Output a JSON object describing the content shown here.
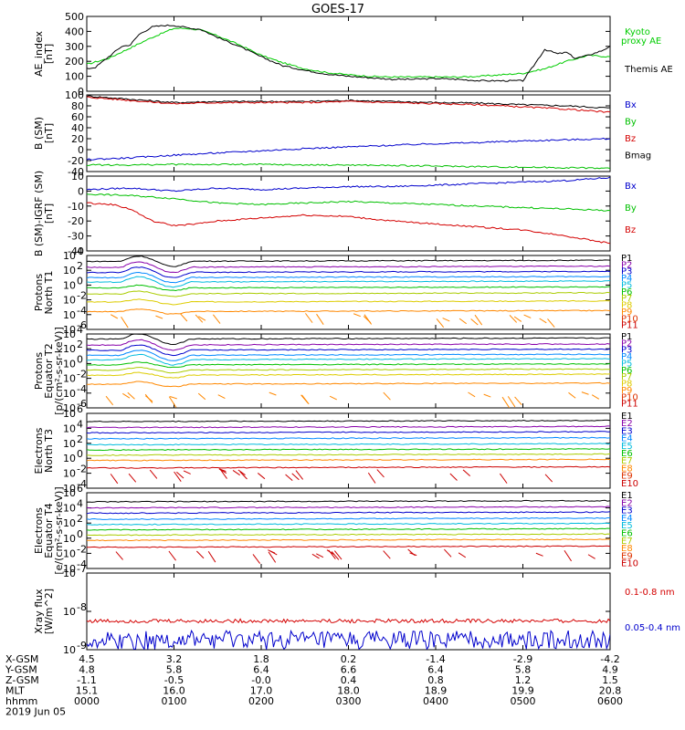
{
  "title": "GOES-17",
  "colors": {
    "black": "#000000",
    "red": "#d40000",
    "green": "#00c000",
    "blue": "#0000cc",
    "kyoto": "#00cc00"
  },
  "chart_data": [
    {
      "type": "line",
      "ylabel": "AE_index",
      "yunit": "[nT]",
      "ylim": [
        0,
        500
      ],
      "yticks": [
        "0",
        "100",
        "200",
        "300",
        "400",
        "500"
      ],
      "legend": [
        {
          "text": "Kyoto",
          "color": "#00cc00"
        },
        {
          "text": "proxy AE",
          "color": "#00cc00"
        },
        {
          "text": "Themis AE",
          "color": "#000000"
        }
      ],
      "series": [
        {
          "name": "Kyoto proxy AE",
          "color": "#00cc00",
          "x": [
            0,
            0.25,
            0.5,
            0.75,
            1,
            1.15,
            1.3,
            1.5,
            1.75,
            2,
            2.25,
            2.5,
            2.75,
            3,
            3.25,
            3.5,
            3.75,
            4,
            4.25,
            4.5,
            4.75,
            5,
            5.25,
            5.5,
            5.75,
            6
          ],
          "y": [
            180,
            220,
            290,
            360,
            420,
            420,
            410,
            370,
            310,
            240,
            190,
            150,
            125,
            110,
            100,
            95,
            95,
            95,
            95,
            100,
            110,
            120,
            150,
            200,
            240,
            230
          ]
        },
        {
          "name": "Themis AE",
          "color": "#000000",
          "x": [
            0,
            0.1,
            0.25,
            0.4,
            0.5,
            0.6,
            0.75,
            0.9,
            1,
            1.1,
            1.2,
            1.3,
            1.5,
            1.75,
            2,
            2.25,
            2.5,
            2.75,
            3,
            3.25,
            3.5,
            3.75,
            4,
            4.25,
            4.5,
            4.75,
            5,
            5.1,
            5.25,
            5.4,
            5.5,
            5.6,
            5.75,
            5.9,
            6
          ],
          "y": [
            150,
            160,
            230,
            300,
            310,
            380,
            430,
            440,
            440,
            430,
            420,
            415,
            360,
            300,
            230,
            170,
            140,
            115,
            100,
            90,
            80,
            80,
            85,
            80,
            70,
            70,
            70,
            150,
            280,
            250,
            260,
            220,
            240,
            270,
            300
          ]
        }
      ]
    },
    {
      "type": "line",
      "ylabel": "B (SM)",
      "yunit": "[nT]",
      "ylim": [
        -40,
        100
      ],
      "yticks": [
        "-40",
        "-20",
        "0",
        "20",
        "40",
        "60",
        "80",
        "100"
      ],
      "legend": [
        {
          "text": "Bx",
          "color": "#0000cc"
        },
        {
          "text": "By",
          "color": "#00c000"
        },
        {
          "text": "Bz",
          "color": "#d40000"
        },
        {
          "text": "Bmag",
          "color": "#000000"
        }
      ],
      "series": [
        {
          "name": "Bmag",
          "color": "#000000",
          "x": [
            0,
            0.5,
            1,
            1.5,
            2,
            2.5,
            3,
            3.5,
            4,
            4.5,
            5,
            5.5,
            6
          ],
          "y": [
            98,
            92,
            86,
            88,
            88,
            88,
            90,
            88,
            86,
            85,
            82,
            80,
            76
          ]
        },
        {
          "name": "Bz",
          "color": "#d40000",
          "x": [
            0,
            0.5,
            1,
            1.5,
            2,
            2.5,
            3,
            3.5,
            4,
            4.5,
            5,
            5.5,
            6
          ],
          "y": [
            96,
            90,
            84,
            86,
            86,
            86,
            88,
            86,
            84,
            82,
            78,
            74,
            68
          ]
        },
        {
          "name": "Bx",
          "color": "#0000cc",
          "x": [
            0,
            0.5,
            1,
            1.5,
            2,
            2.5,
            3,
            3.5,
            4,
            4.5,
            5,
            5.5,
            6
          ],
          "y": [
            -18,
            -15,
            -10,
            -6,
            -2,
            2,
            5,
            8,
            11,
            13,
            16,
            18,
            20
          ]
        },
        {
          "name": "By",
          "color": "#00c000",
          "x": [
            0,
            0.5,
            1,
            1.5,
            2,
            2.5,
            3,
            3.5,
            4,
            4.5,
            5,
            5.5,
            6
          ],
          "y": [
            -28,
            -28,
            -27,
            -27,
            -27,
            -28,
            -28,
            -29,
            -30,
            -31,
            -32,
            -33,
            -34
          ]
        }
      ]
    },
    {
      "type": "line",
      "ylabel": "B (SM)-IGRF (SM)",
      "yunit": "[nT]",
      "ylim": [
        -40,
        10
      ],
      "yticks": [
        "-40",
        "-30",
        "-20",
        "-10",
        "0",
        "10"
      ],
      "legend": [
        {
          "text": "Bx",
          "color": "#0000cc"
        },
        {
          "text": "By",
          "color": "#00c000"
        },
        {
          "text": "Bz",
          "color": "#d40000"
        }
      ],
      "series": [
        {
          "name": "Bx",
          "color": "#0000cc",
          "x": [
            0,
            0.5,
            1,
            1.5,
            2,
            2.5,
            3,
            3.5,
            4,
            4.5,
            5,
            5.5,
            6
          ],
          "y": [
            1,
            2,
            0,
            2,
            1,
            2,
            3,
            3,
            4,
            5,
            6,
            7,
            9
          ]
        },
        {
          "name": "By",
          "color": "#00c000",
          "x": [
            0,
            0.5,
            1,
            1.5,
            2,
            2.5,
            3,
            3.5,
            4,
            4.5,
            5,
            5.5,
            6
          ],
          "y": [
            -2,
            -3,
            -5,
            -8,
            -9,
            -8,
            -7,
            -8,
            -9,
            -10,
            -11,
            -12,
            -13
          ]
        },
        {
          "name": "Bz",
          "color": "#d40000",
          "x": [
            0,
            0.3,
            0.5,
            0.75,
            1,
            1.25,
            1.5,
            2,
            2.5,
            3,
            3.5,
            4,
            4.5,
            5,
            5.5,
            6
          ],
          "y": [
            -8,
            -9,
            -12,
            -20,
            -23,
            -22,
            -20,
            -18,
            -16,
            -17,
            -20,
            -22,
            -24,
            -26,
            -30,
            -35
          ]
        }
      ]
    },
    {
      "type": "line",
      "ylabel": "Protons",
      "ylabel2": "North T1",
      "yscale": "log",
      "ylim_exp": [
        -6,
        4
      ],
      "yticks": [
        {
          "base": "10",
          "exp": "4"
        },
        {
          "base": "10",
          "exp": "2"
        },
        {
          "base": "10",
          "exp": "0"
        },
        {
          "base": "10",
          "exp": "-2"
        },
        {
          "base": "10",
          "exp": "-4"
        },
        {
          "base": "10",
          "exp": "-6"
        }
      ],
      "legend": [
        {
          "text": "P1",
          "color": "#000000"
        },
        {
          "text": "P2",
          "color": "#8800aa"
        },
        {
          "text": "P3",
          "color": "#0000cc"
        },
        {
          "text": "P4",
          "color": "#0088ff"
        },
        {
          "text": "P5",
          "color": "#00bbdd"
        },
        {
          "text": "P6",
          "color": "#00c000"
        },
        {
          "text": "P7",
          "color": "#aacc00"
        },
        {
          "text": "P8",
          "color": "#ddcc00"
        },
        {
          "text": "P9",
          "color": "#ff8800"
        },
        {
          "text": "P10",
          "color": "#dd3300"
        },
        {
          "text": "P11",
          "color": "#cc0000"
        }
      ],
      "levels": [
        3.2,
        2.4,
        1.7,
        1.0,
        0.4,
        -0.4,
        -1.2,
        -2.3,
        -3.6
      ],
      "colors": [
        "#000000",
        "#8800aa",
        "#0000cc",
        "#0088ff",
        "#00bbdd",
        "#00c000",
        "#aacc00",
        "#ddcc00",
        "#ff8800"
      ]
    },
    {
      "type": "line",
      "ylabel": "Protons",
      "ylabel2": "Equator T2",
      "yunit": "[p/(cm²-s-sr-keV)]",
      "yscale": "log",
      "ylim_exp": [
        -6,
        4
      ],
      "yticks": [
        {
          "base": "10",
          "exp": "4"
        },
        {
          "base": "10",
          "exp": "2"
        },
        {
          "base": "10",
          "exp": "0"
        },
        {
          "base": "10",
          "exp": "-2"
        },
        {
          "base": "10",
          "exp": "-4"
        },
        {
          "base": "10",
          "exp": "-6"
        }
      ],
      "legend": [
        {
          "text": "P1",
          "color": "#000000"
        },
        {
          "text": "P2",
          "color": "#8800aa"
        },
        {
          "text": "P3",
          "color": "#0000cc"
        },
        {
          "text": "P4",
          "color": "#0088ff"
        },
        {
          "text": "P5",
          "color": "#00bbdd"
        },
        {
          "text": "P6",
          "color": "#00c000"
        },
        {
          "text": "P7",
          "color": "#aacc00"
        },
        {
          "text": "P8",
          "color": "#ddcc00"
        },
        {
          "text": "P9",
          "color": "#ff8800"
        },
        {
          "text": "P10",
          "color": "#dd3300"
        },
        {
          "text": "P11",
          "color": "#cc0000"
        }
      ],
      "levels": [
        3.3,
        2.5,
        1.8,
        1.1,
        0.5,
        -0.2,
        -0.9,
        -1.6,
        -2.8
      ],
      "colors": [
        "#000000",
        "#8800aa",
        "#0000cc",
        "#0088ff",
        "#00bbdd",
        "#00c000",
        "#aacc00",
        "#ddcc00",
        "#ff8800"
      ]
    },
    {
      "type": "line",
      "ylabel": "Electrons",
      "ylabel2": "North T3",
      "yscale": "log",
      "ylim_exp": [
        -4,
        6
      ],
      "yticks": [
        {
          "base": "10",
          "exp": "6"
        },
        {
          "base": "10",
          "exp": "4"
        },
        {
          "base": "10",
          "exp": "2"
        },
        {
          "base": "10",
          "exp": "0"
        },
        {
          "base": "10",
          "exp": "-2"
        },
        {
          "base": "10",
          "exp": "-4"
        }
      ],
      "legend": [
        {
          "text": "E1",
          "color": "#000000"
        },
        {
          "text": "E2",
          "color": "#8800aa"
        },
        {
          "text": "E3",
          "color": "#0000cc"
        },
        {
          "text": "E4",
          "color": "#0088ff"
        },
        {
          "text": "E5",
          "color": "#00bbdd"
        },
        {
          "text": "E6",
          "color": "#00c000"
        },
        {
          "text": "E7",
          "color": "#aacc00"
        },
        {
          "text": "E8",
          "color": "#ff8800"
        },
        {
          "text": "E9",
          "color": "#dd3300"
        },
        {
          "text": "E10",
          "color": "#cc0000"
        }
      ],
      "levels": [
        4.9,
        4.1,
        3.4,
        2.6,
        1.8,
        1.1,
        0.4,
        -0.3,
        -1.3
      ],
      "colors": [
        "#000000",
        "#8800aa",
        "#0000cc",
        "#0088ff",
        "#00bbdd",
        "#00c000",
        "#aacc00",
        "#ff8800",
        "#cc0000"
      ]
    },
    {
      "type": "line",
      "ylabel": "Electrons",
      "ylabel2": "Equator T4",
      "yunit": "[e/(cm²-s-sr-keV)]",
      "yscale": "log",
      "ylim_exp": [
        -4,
        6
      ],
      "yticks": [
        {
          "base": "10",
          "exp": "6"
        },
        {
          "base": "10",
          "exp": "4"
        },
        {
          "base": "10",
          "exp": "2"
        },
        {
          "base": "10",
          "exp": "0"
        },
        {
          "base": "10",
          "exp": "-2"
        },
        {
          "base": "10",
          "exp": "-4"
        }
      ],
      "legend": [
        {
          "text": "E1",
          "color": "#000000"
        },
        {
          "text": "E2",
          "color": "#8800aa"
        },
        {
          "text": "E3",
          "color": "#0000cc"
        },
        {
          "text": "E4",
          "color": "#0088ff"
        },
        {
          "text": "E5",
          "color": "#00bbdd"
        },
        {
          "text": "E6",
          "color": "#00c000"
        },
        {
          "text": "E7",
          "color": "#aacc00"
        },
        {
          "text": "E8",
          "color": "#ff8800"
        },
        {
          "text": "E9",
          "color": "#dd3300"
        },
        {
          "text": "E10",
          "color": "#cc0000"
        }
      ],
      "levels": [
        4.8,
        4.0,
        3.3,
        2.5,
        1.8,
        1.1,
        0.4,
        -0.3,
        -1.2
      ],
      "colors": [
        "#000000",
        "#8800aa",
        "#0000cc",
        "#0088ff",
        "#00bbdd",
        "#00c000",
        "#aacc00",
        "#ff8800",
        "#cc0000"
      ]
    },
    {
      "type": "line",
      "ylabel": "Xray flux",
      "yunit": "[W/m^2]",
      "yscale": "log",
      "ylim_exp": [
        -9,
        -7
      ],
      "yticks": [
        {
          "base": "10",
          "exp": "-7"
        },
        {
          "base": "10",
          "exp": "-8"
        },
        {
          "base": "10",
          "exp": "-9"
        }
      ],
      "legend": [
        {
          "text": "0.1-0.8 nm",
          "color": "#d40000"
        },
        {
          "text": "0.05-0.4 nm",
          "color": "#0000cc"
        }
      ],
      "series": [
        {
          "name": "0.1-0.8 nm",
          "color": "#d40000",
          "level": -8.25
        },
        {
          "name": "0.05-0.4 nm",
          "color": "#0000cc",
          "level": -8.75
        }
      ]
    }
  ],
  "x_axis": {
    "rows": [
      {
        "label": "X-GSM",
        "values": [
          "4.5",
          "3.2",
          "1.8",
          "0.2",
          "-1.4",
          "-2.9",
          "-4.2"
        ]
      },
      {
        "label": "Y-GSM",
        "values": [
          "4.8",
          "5.8",
          "6.4",
          "6.6",
          "6.4",
          "5.8",
          "4.9"
        ]
      },
      {
        "label": "Z-GSM",
        "values": [
          "-1.1",
          "-0.5",
          "-0.0",
          "0.4",
          "0.8",
          "1.2",
          "1.5"
        ]
      },
      {
        "label": "MLT",
        "values": [
          "15.1",
          "16.0",
          "17.0",
          "18.0",
          "18.9",
          "19.9",
          "20.8"
        ]
      },
      {
        "label": "hhmm",
        "values": [
          "0000",
          "0100",
          "0200",
          "0300",
          "0400",
          "0500",
          "0600"
        ]
      }
    ],
    "date": "2019 Jun 05"
  }
}
